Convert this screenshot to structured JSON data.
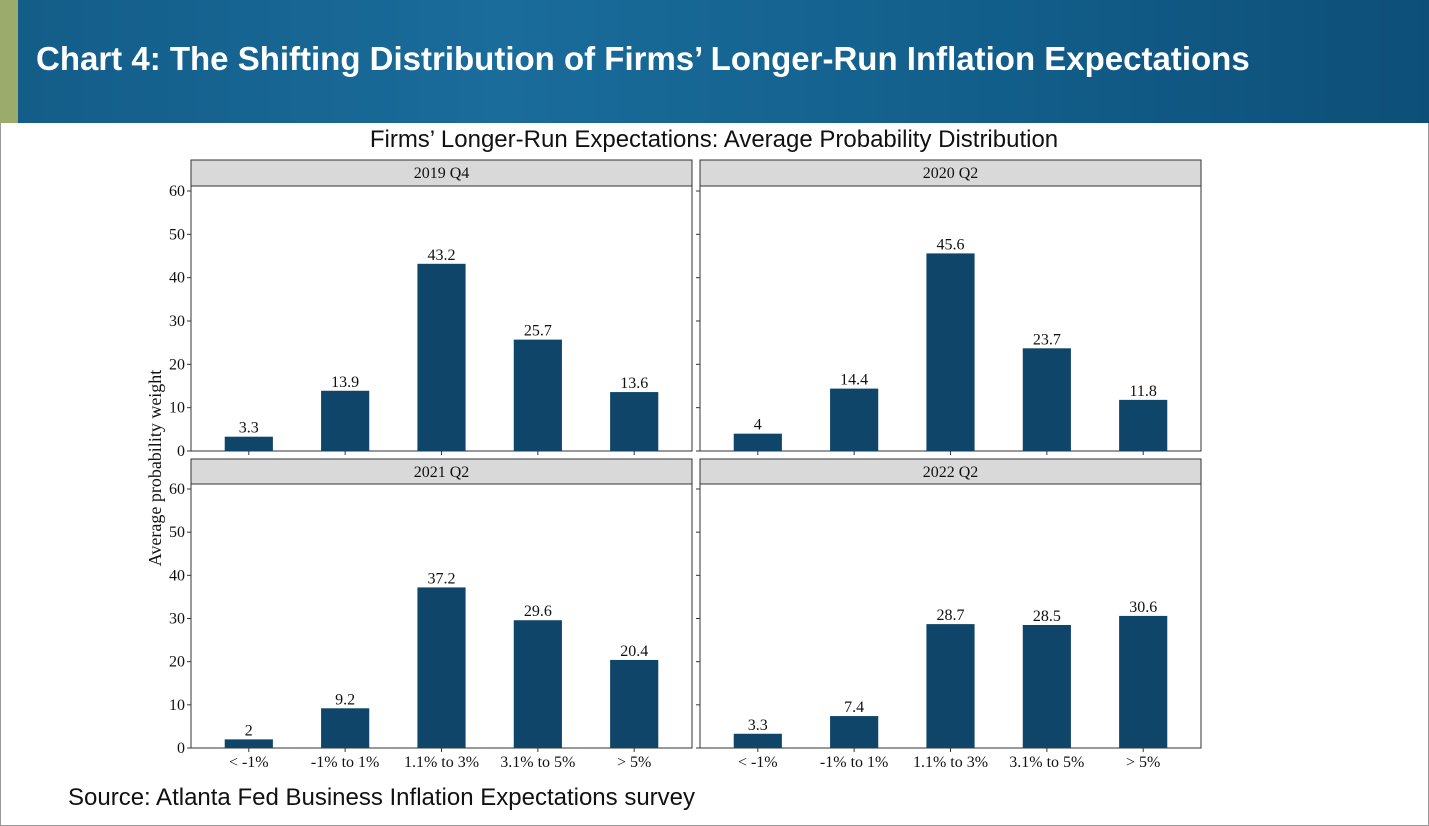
{
  "header": {
    "title": "Chart 4: The Shifting Distribution of Firms’ Longer-Run Inflation Expectations"
  },
  "chart_data": {
    "type": "bar",
    "title": "Firms’ Longer-Run Expectations: Average Probability Distribution",
    "ylabel": "Average probability weight",
    "categories": [
      "< -1%",
      "-1% to 1%",
      "1.1% to 3%",
      "3.1% to 5%",
      "> 5%"
    ],
    "ylim": [
      0,
      60
    ],
    "yticks": [
      0,
      10,
      20,
      30,
      40,
      50,
      60
    ],
    "color": "#10456a",
    "panels": [
      {
        "title": "2019 Q4",
        "values": [
          3.3,
          13.9,
          43.2,
          25.7,
          13.6
        ]
      },
      {
        "title": "2020 Q2",
        "values": [
          4,
          14.4,
          45.6,
          23.7,
          11.8
        ]
      },
      {
        "title": "2021 Q2",
        "values": [
          2,
          9.2,
          37.2,
          29.6,
          20.4
        ]
      },
      {
        "title": "2022 Q2",
        "values": [
          3.3,
          7.4,
          28.7,
          28.5,
          30.6
        ]
      }
    ]
  },
  "source": "Source: Atlanta Fed Business Inflation Expectations survey"
}
